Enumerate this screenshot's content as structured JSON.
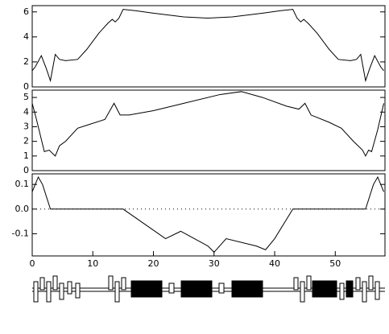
{
  "chart_data": [
    {
      "type": "line",
      "xlim": [
        0,
        58.2
      ],
      "ylim": [
        0,
        6.5
      ],
      "yticks": [
        0,
        2,
        4,
        6
      ],
      "color": "#000000",
      "x": [
        0,
        0.5,
        1.5,
        2.3,
        3,
        3.8,
        4.5,
        5.5,
        7.5,
        9,
        11,
        12.5,
        13.2,
        13.7,
        14.3,
        15,
        17,
        20,
        25,
        29,
        33,
        38,
        41,
        43,
        43.7,
        44.3,
        44.8,
        45.5,
        47,
        49,
        50.5,
        52.5,
        53.5,
        54.2,
        55,
        55.7,
        56.5,
        57.5,
        58
      ],
      "values": [
        1.3,
        1.6,
        2.5,
        1.5,
        0.5,
        2.6,
        2.2,
        2.1,
        2.2,
        3,
        4.3,
        5.1,
        5.4,
        5.2,
        5.5,
        6.2,
        6.1,
        5.9,
        5.6,
        5.5,
        5.6,
        5.9,
        6.1,
        6.2,
        5.5,
        5.2,
        5.4,
        5.1,
        4.3,
        3,
        2.2,
        2.1,
        2.2,
        2.6,
        0.5,
        1.5,
        2.5,
        1.6,
        1.3
      ]
    },
    {
      "type": "line",
      "xlim": [
        0,
        58.2
      ],
      "ylim": [
        0,
        5.5
      ],
      "yticks": [
        0,
        1,
        2,
        3,
        4,
        5
      ],
      "color": "#000000",
      "x": [
        0,
        0.7,
        2,
        2.8,
        3.8,
        4.5,
        5.5,
        7.5,
        9,
        12,
        13.5,
        14.5,
        16,
        20,
        25,
        31,
        34.5,
        38,
        42,
        44,
        45,
        46,
        49,
        51,
        53,
        54.5,
        55,
        55.5,
        56,
        57,
        58
      ],
      "values": [
        4.6,
        3.5,
        1.3,
        1.4,
        1.0,
        1.7,
        2.0,
        2.9,
        3.1,
        3.5,
        4.6,
        3.8,
        3.8,
        4.1,
        4.6,
        5.2,
        5.4,
        5.0,
        4.4,
        4.2,
        4.6,
        3.8,
        3.3,
        2.9,
        2.0,
        1.4,
        1.0,
        1.4,
        1.3,
        2.8,
        4.6
      ]
    },
    {
      "type": "line",
      "xlim": [
        0,
        58.2
      ],
      "ylim": [
        -0.19,
        0.143
      ],
      "yticks": [
        -0.1,
        {
          "value": 0,
          "label": "0.0"
        },
        0.1
      ],
      "xticks": [
        0,
        10,
        20,
        30,
        40,
        50
      ],
      "zero_line": true,
      "color": "#000000",
      "x": [
        0,
        1,
        1.7,
        3,
        15,
        22,
        24.5,
        29,
        30,
        32,
        37,
        38.5,
        40,
        43,
        55,
        56.3,
        57,
        58
      ],
      "values": [
        0.07,
        0.13,
        0.1,
        0,
        0,
        -0.12,
        -0.09,
        -0.15,
        -0.175,
        -0.12,
        -0.15,
        -0.165,
        -0.12,
        0,
        0,
        0.1,
        0.13,
        0.07
      ]
    }
  ]
}
